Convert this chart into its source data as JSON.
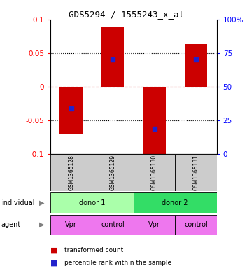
{
  "title": "GDS5294 / 1555243_x_at",
  "samples": [
    "GSM1365128",
    "GSM1365129",
    "GSM1365130",
    "GSM1365131"
  ],
  "bar_values": [
    -0.07,
    0.088,
    -0.108,
    0.063
  ],
  "percentile_values": [
    -0.032,
    0.04,
    -0.063,
    0.04
  ],
  "ylim": [
    -0.1,
    0.1
  ],
  "yticks_left": [
    -0.1,
    -0.05,
    0,
    0.05,
    0.1
  ],
  "yticks_right": [
    0,
    25,
    50,
    75,
    100
  ],
  "ytick_right_positions": [
    -0.1,
    -0.05,
    0,
    0.05,
    0.1
  ],
  "bar_color": "#cc0000",
  "percentile_color": "#2222cc",
  "zero_line_color": "#cc0000",
  "individuals": [
    "donor 1",
    "donor 2"
  ],
  "individual_colors": [
    "#aaffaa",
    "#33dd66"
  ],
  "agents": [
    "Vpr",
    "control",
    "Vpr",
    "control"
  ],
  "agent_color": "#ee77ee",
  "sample_box_color": "#cccccc",
  "legend_bar_label": "transformed count",
  "legend_pct_label": "percentile rank within the sample",
  "individual_label": "individual",
  "agent_label": "agent",
  "figsize": [
    3.6,
    3.93
  ],
  "dpi": 100
}
